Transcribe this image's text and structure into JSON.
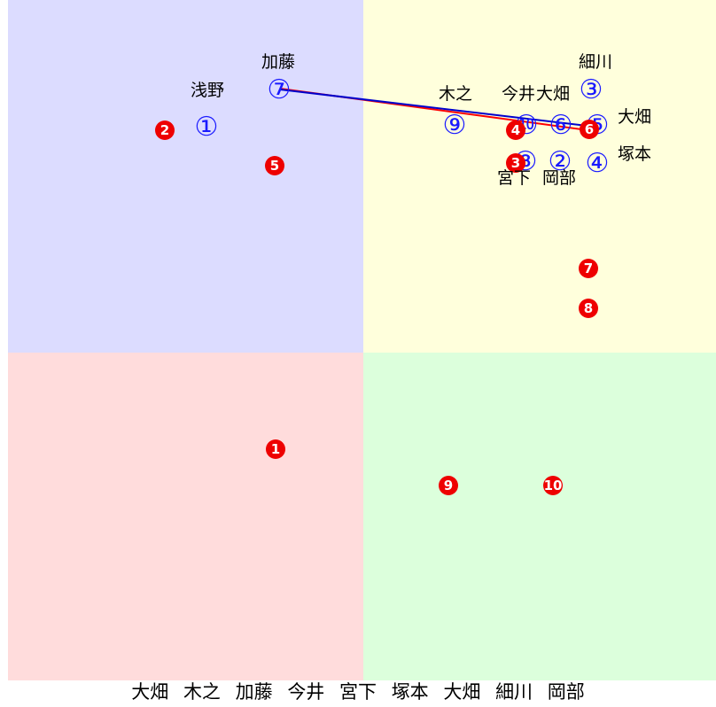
{
  "quadrants": [
    {
      "id": "top-left",
      "color": "#dcdcff"
    },
    {
      "id": "top-right",
      "color": "#ffffdc"
    },
    {
      "id": "bottom-left",
      "color": "#ffdcdc"
    },
    {
      "id": "bottom-right",
      "color": "#dcffdc"
    }
  ],
  "blue_markers": [
    {
      "num": "①",
      "label": "浅野"
    },
    {
      "num": "②",
      "label": "岡部"
    },
    {
      "num": "③",
      "label": "細川"
    },
    {
      "num": "④",
      "label": "塚本"
    },
    {
      "num": "⑤",
      "label": "大畑"
    },
    {
      "num": "⑥",
      "label": "大畑"
    },
    {
      "num": "⑦",
      "label": "加藤"
    },
    {
      "num": "⑧",
      "label": "宮下"
    },
    {
      "num": "⑨",
      "label": "木之"
    },
    {
      "num": "⑩",
      "label": "今井"
    }
  ],
  "red_markers": [
    {
      "num": "1"
    },
    {
      "num": "2"
    },
    {
      "num": "3"
    },
    {
      "num": "4"
    },
    {
      "num": "5"
    },
    {
      "num": "6"
    },
    {
      "num": "7"
    },
    {
      "num": "8"
    },
    {
      "num": "9"
    },
    {
      "num": "10"
    }
  ],
  "lines": [
    {
      "color": "#ff0000"
    },
    {
      "color": "#0000cc"
    }
  ],
  "footer_names": [
    "大畑",
    "木之",
    "加藤",
    "今井",
    "宮下",
    "塚本",
    "大畑",
    "細川",
    "岡部"
  ]
}
